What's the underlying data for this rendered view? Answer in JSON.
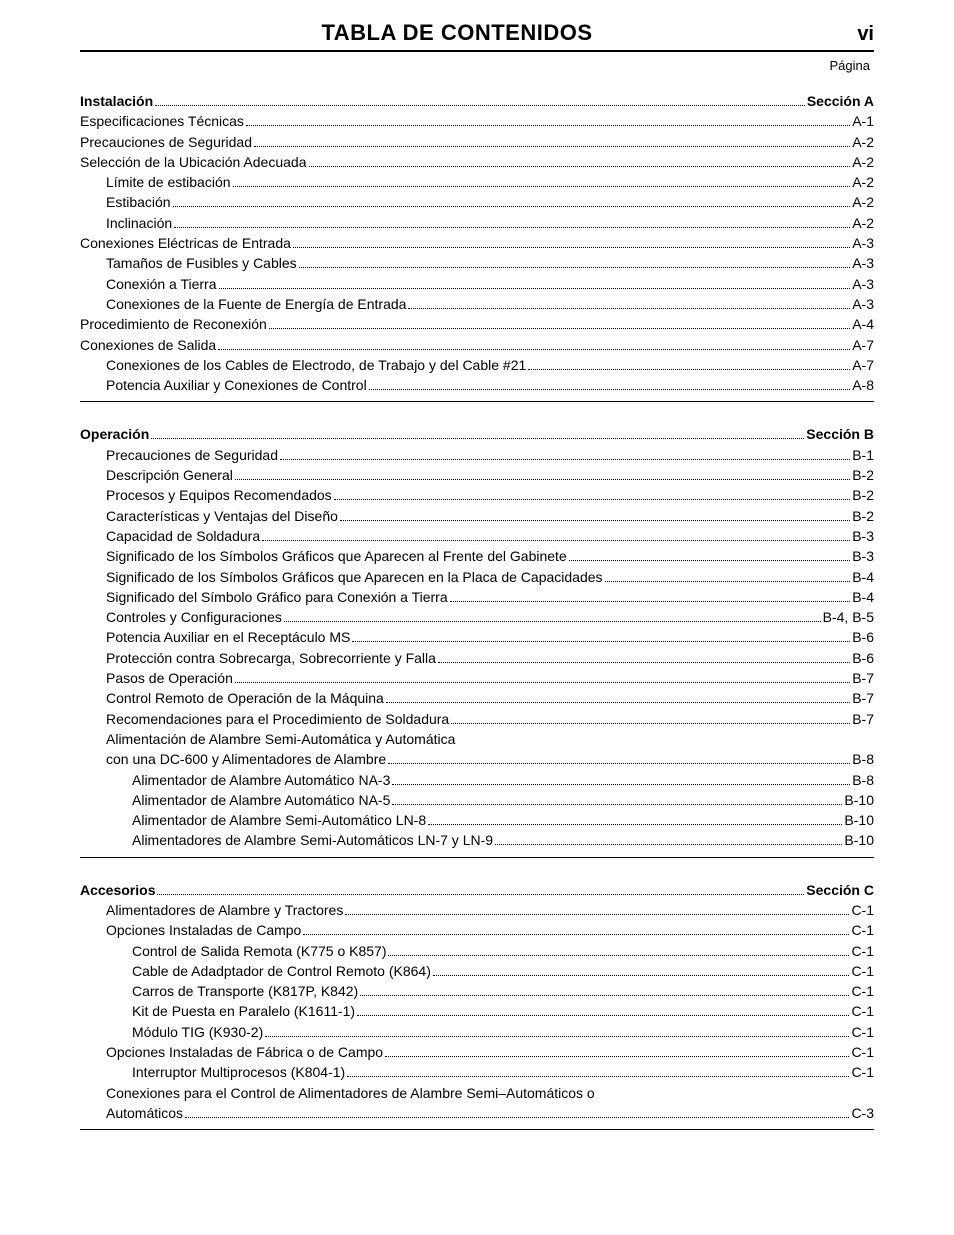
{
  "header": {
    "title": "TABLA DE CONTENIDOS",
    "page_marker": "vi",
    "page_label": "Página"
  },
  "sections": [
    {
      "rows": [
        {
          "label": "Instalación",
          "page": "Sección A",
          "indent": 0,
          "bold": true
        },
        {
          "label": "Especificaciones Técnicas",
          "page": "A-1",
          "indent": 0
        },
        {
          "label": "Precauciones de Seguridad",
          "page": "A-2",
          "indent": 0
        },
        {
          "label": "Selección de la Ubicación Adecuada",
          "page": "A-2",
          "indent": 0
        },
        {
          "label": "Límite de estibación",
          "page": "A-2",
          "indent": 1
        },
        {
          "label": "Estibación",
          "page": "A-2",
          "indent": 1
        },
        {
          "label": "Inclinación",
          "page": "A-2",
          "indent": 1
        },
        {
          "label": "Conexiones Eléctricas de Entrada",
          "page": "A-3",
          "indent": 0
        },
        {
          "label": "Tamaños de Fusibles y Cables",
          "page": "A-3",
          "indent": 1
        },
        {
          "label": "Conexión a Tierra",
          "page": "A-3",
          "indent": 1
        },
        {
          "label": "Conexiones de la Fuente de Energía de Entrada",
          "page": "A-3",
          "indent": 1
        },
        {
          "label": "Procedimiento de Reconexión",
          "page": "A-4",
          "indent": 0
        },
        {
          "label": "Conexiones de Salida",
          "page": "A-7",
          "indent": 0
        },
        {
          "label": "Conexiones de los Cables de Electrodo, de Trabajo y del Cable #21",
          "page": "A-7",
          "indent": 1
        },
        {
          "label": "Potencia Auxiliar y Conexiones de Control",
          "page": "A-8",
          "indent": 1
        }
      ]
    },
    {
      "rows": [
        {
          "label": "Operación",
          "page": "Sección B",
          "indent": 0,
          "bold": true
        },
        {
          "label": "Precauciones de Seguridad",
          "page": "B-1",
          "indent": 1
        },
        {
          "label": "Descripción General",
          "page": "B-2",
          "indent": 1
        },
        {
          "label": "Procesos y Equipos Recomendados",
          "page": "B-2",
          "indent": 1
        },
        {
          "label": "Características y Ventajas del Diseño",
          "page": "B-2",
          "indent": 1
        },
        {
          "label": "Capacidad de Soldadura",
          "page": "B-3",
          "indent": 1
        },
        {
          "label": "Significado de los Símbolos Gráficos que Aparecen al Frente del Gabinete",
          "page": "B-3",
          "indent": 1
        },
        {
          "label": "Significado de los Símbolos Gráficos que Aparecen en la Placa de Capacidades",
          "page": "B-4",
          "indent": 1
        },
        {
          "label": "Significado del Símbolo Gráfico para Conexión a Tierra",
          "page": "B-4",
          "indent": 1
        },
        {
          "label": "Controles y Configuraciones",
          "page": "B-4, B-5",
          "indent": 1
        },
        {
          "label": "Potencia Auxiliar en el Receptáculo MS",
          "page": "B-6",
          "indent": 1
        },
        {
          "label": "Protección contra Sobrecarga, Sobrecorriente y Falla",
          "page": "B-6",
          "indent": 1
        },
        {
          "label": "Pasos de Operación",
          "page": "B-7",
          "indent": 1
        },
        {
          "label": "Control Remoto de Operación de la Máquina",
          "page": "B-7",
          "indent": 1
        },
        {
          "label": "Recomendaciones para el Procedimiento de Soldadura",
          "page": "B-7",
          "indent": 1
        },
        {
          "label": "Alimentación de Alambre Semi-Automática y Automática",
          "page": "",
          "indent": 1,
          "nodots": true
        },
        {
          "label": "con una DC-600 y Alimentadores de Alambre",
          "page": "B-8",
          "indent": 1
        },
        {
          "label": "Alimentador de Alambre Automático NA-3",
          "page": "B-8",
          "indent": 2
        },
        {
          "label": "Alimentador de Alambre Automático NA-5",
          "page": "B-10",
          "indent": 2
        },
        {
          "label": "Alimentador de Alambre Semi-Automático LN-8",
          "page": "B-10",
          "indent": 2
        },
        {
          "label": "Alimentadores de Alambre Semi-Automáticos LN-7 y LN-9",
          "page": "B-10",
          "indent": 2
        }
      ]
    },
    {
      "rows": [
        {
          "label": "Accesorios",
          "page": "Sección C",
          "indent": 0,
          "bold": true
        },
        {
          "label": "Alimentadores de Alambre y Tractores",
          "page": "C-1",
          "indent": 1
        },
        {
          "label": "Opciones Instaladas de Campo",
          "page": "C-1",
          "indent": 1
        },
        {
          "label": "Control de Salida Remota (K775 o K857)",
          "page": "C-1",
          "indent": 2
        },
        {
          "label": "Cable de Adadptador de Control Remoto (K864)",
          "page": "C-1",
          "indent": 2
        },
        {
          "label": "Carros de Transporte (K817P, K842)",
          "page": "C-1",
          "indent": 2
        },
        {
          "label": "Kit de Puesta en Paralelo (K1611-1)",
          "page": "C-1",
          "indent": 2
        },
        {
          "label": "Módulo TIG (K930-2)",
          "page": "C-1",
          "indent": 2
        },
        {
          "label": "Opciones Instaladas de Fábrica o de Campo",
          "page": "C-1",
          "indent": 1
        },
        {
          "label": "Interruptor Multiprocesos (K804-1)",
          "page": "C-1",
          "indent": 2
        },
        {
          "label": "Conexiones para el Control de Alimentadores de Alambre Semi–Automáticos o",
          "page": "",
          "indent": 1,
          "nodots": true
        },
        {
          "label": "Automáticos",
          "page": "C-3",
          "indent": 1
        }
      ]
    }
  ]
}
